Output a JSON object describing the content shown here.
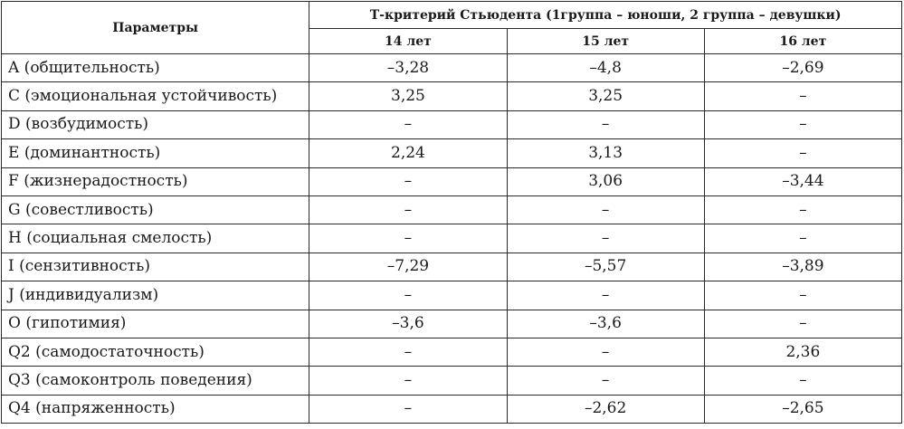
{
  "table": {
    "param_header": "Параметры",
    "group_header": "Т-критерий Стьюдента (1группа – юноши, 2 группа – девушки)",
    "age_headers": [
      "14 лет",
      "15 лет",
      "16 лет"
    ],
    "rows": [
      {
        "param": "A (общительность)",
        "values": [
          "–3,28",
          "–4,8",
          "–2,69"
        ]
      },
      {
        "param": "C (эмоциональная устойчивость)",
        "values": [
          "3,25",
          "3,25",
          "–"
        ]
      },
      {
        "param": "D (возбудимость)",
        "values": [
          "–",
          "–",
          "–"
        ]
      },
      {
        "param": "E (доминантность)",
        "values": [
          "2,24",
          "3,13",
          "–"
        ]
      },
      {
        "param": "F (жизнерадостность)",
        "values": [
          "–",
          "3,06",
          "–3,44"
        ]
      },
      {
        "param": "G (совестливость)",
        "values": [
          "–",
          "–",
          "–"
        ]
      },
      {
        "param": "H (социальная смелость)",
        "values": [
          "–",
          "–",
          "–"
        ]
      },
      {
        "param": "I (сензитивность)",
        "values": [
          "–7,29",
          "–5,57",
          "–3,89"
        ]
      },
      {
        "param": "J (индивидуализм)",
        "values": [
          "–",
          "–",
          "–"
        ]
      },
      {
        "param": "O (гипотимия)",
        "values": [
          "–3,6",
          "–3,6",
          "–"
        ]
      },
      {
        "param": "Q2 (самодостаточность)",
        "values": [
          "–",
          "–",
          "2,36"
        ]
      },
      {
        "param": "Q3 (самоконтроль поведения)",
        "values": [
          "–",
          "–",
          "–"
        ]
      },
      {
        "param": "Q4 (напряженность)",
        "values": [
          "–",
          "–2,62",
          "–2,65"
        ]
      }
    ]
  }
}
